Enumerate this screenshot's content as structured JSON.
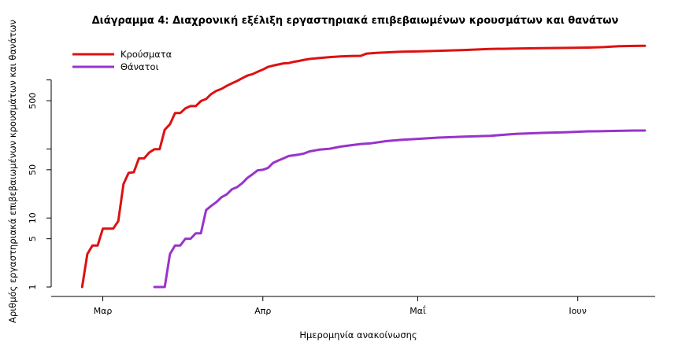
{
  "chart_data": {
    "type": "line",
    "title": "Διάγραμμα 4: Διαχρονική εξέλιξη εργαστηριακά επιβεβαιωμένων κρουσμάτων και θανάτων",
    "xlabel": "Ημερομηνία ανακοίνωσης",
    "ylabel": "Αριθμός εργαστηριακά επιβεβαιωμένων κρουσμάτων και θανάτων",
    "y_scale": "log",
    "ylim": [
      1,
      3400
    ],
    "xlim": [
      "2020-02-20",
      "2020-06-16"
    ],
    "x_ticks": [
      {
        "date": "2020-03-01",
        "label": "Μαρ"
      },
      {
        "date": "2020-04-01",
        "label": "Απρ"
      },
      {
        "date": "2020-05-01",
        "label": "Μαΐ"
      },
      {
        "date": "2020-06-01",
        "label": "Ιουν"
      }
    ],
    "y_ticks": [
      {
        "value": 1,
        "label": "1"
      },
      {
        "value": 5,
        "label": "5"
      },
      {
        "value": 10,
        "label": "10"
      },
      {
        "value": 50,
        "label": "50"
      },
      {
        "value": 500,
        "label": "500"
      }
    ],
    "y_ticks_unlabeled": [
      100,
      1000
    ],
    "grid": false,
    "legend_position": "top-left",
    "series": [
      {
        "name": "Κρούσματα",
        "color": "#dd1111",
        "points": [
          [
            "2020-02-26",
            1
          ],
          [
            "2020-02-27",
            3
          ],
          [
            "2020-02-28",
            4
          ],
          [
            "2020-02-29",
            4
          ],
          [
            "2020-03-01",
            7
          ],
          [
            "2020-03-02",
            7
          ],
          [
            "2020-03-03",
            7
          ],
          [
            "2020-03-04",
            9
          ],
          [
            "2020-03-05",
            31
          ],
          [
            "2020-03-06",
            45
          ],
          [
            "2020-03-07",
            46
          ],
          [
            "2020-03-08",
            73
          ],
          [
            "2020-03-09",
            73
          ],
          [
            "2020-03-10",
            89
          ],
          [
            "2020-03-11",
            99
          ],
          [
            "2020-03-12",
            99
          ],
          [
            "2020-03-13",
            190
          ],
          [
            "2020-03-14",
            228
          ],
          [
            "2020-03-15",
            331
          ],
          [
            "2020-03-16",
            331
          ],
          [
            "2020-03-17",
            387
          ],
          [
            "2020-03-18",
            418
          ],
          [
            "2020-03-19",
            418
          ],
          [
            "2020-03-20",
            495
          ],
          [
            "2020-03-21",
            530
          ],
          [
            "2020-03-22",
            624
          ],
          [
            "2020-03-23",
            695
          ],
          [
            "2020-03-24",
            743
          ],
          [
            "2020-03-25",
            821
          ],
          [
            "2020-03-26",
            892
          ],
          [
            "2020-03-27",
            966
          ],
          [
            "2020-03-28",
            1061
          ],
          [
            "2020-03-29",
            1156
          ],
          [
            "2020-03-30",
            1212
          ],
          [
            "2020-03-31",
            1314
          ],
          [
            "2020-04-01",
            1415
          ],
          [
            "2020-04-02",
            1544
          ],
          [
            "2020-04-03",
            1613
          ],
          [
            "2020-04-04",
            1673
          ],
          [
            "2020-04-05",
            1735
          ],
          [
            "2020-04-06",
            1755
          ],
          [
            "2020-04-07",
            1832
          ],
          [
            "2020-04-08",
            1884
          ],
          [
            "2020-04-09",
            1955
          ],
          [
            "2020-04-10",
            2011
          ],
          [
            "2020-04-12",
            2081
          ],
          [
            "2020-04-14",
            2145
          ],
          [
            "2020-04-16",
            2192
          ],
          [
            "2020-04-18",
            2224
          ],
          [
            "2020-04-20",
            2235
          ],
          [
            "2020-04-21",
            2401
          ],
          [
            "2020-04-23",
            2463
          ],
          [
            "2020-04-25",
            2506
          ],
          [
            "2020-04-28",
            2566
          ],
          [
            "2020-05-01",
            2591
          ],
          [
            "2020-05-05",
            2642
          ],
          [
            "2020-05-10",
            2716
          ],
          [
            "2020-05-15",
            2810
          ],
          [
            "2020-05-20",
            2850
          ],
          [
            "2020-05-25",
            2880
          ],
          [
            "2020-05-30",
            2910
          ],
          [
            "2020-06-03",
            2940
          ],
          [
            "2020-06-06",
            2990
          ],
          [
            "2020-06-09",
            3080
          ],
          [
            "2020-06-12",
            3110
          ],
          [
            "2020-06-14",
            3130
          ]
        ]
      },
      {
        "name": "Θάνατοι",
        "color": "#9933cc",
        "points": [
          [
            "2020-03-11",
            1
          ],
          [
            "2020-03-12",
            1
          ],
          [
            "2020-03-13",
            1
          ],
          [
            "2020-03-14",
            3
          ],
          [
            "2020-03-15",
            4
          ],
          [
            "2020-03-16",
            4
          ],
          [
            "2020-03-17",
            5
          ],
          [
            "2020-03-18",
            5
          ],
          [
            "2020-03-19",
            6
          ],
          [
            "2020-03-20",
            6
          ],
          [
            "2020-03-21",
            13
          ],
          [
            "2020-03-22",
            15
          ],
          [
            "2020-03-23",
            17
          ],
          [
            "2020-03-24",
            20
          ],
          [
            "2020-03-25",
            22
          ],
          [
            "2020-03-26",
            26
          ],
          [
            "2020-03-27",
            28
          ],
          [
            "2020-03-28",
            32
          ],
          [
            "2020-03-29",
            38
          ],
          [
            "2020-03-30",
            43
          ],
          [
            "2020-03-31",
            49
          ],
          [
            "2020-04-01",
            50
          ],
          [
            "2020-04-02",
            53
          ],
          [
            "2020-04-03",
            63
          ],
          [
            "2020-04-04",
            68
          ],
          [
            "2020-04-05",
            73
          ],
          [
            "2020-04-06",
            79
          ],
          [
            "2020-04-07",
            81
          ],
          [
            "2020-04-08",
            83
          ],
          [
            "2020-04-09",
            86
          ],
          [
            "2020-04-10",
            92
          ],
          [
            "2020-04-12",
            98
          ],
          [
            "2020-04-14",
            101
          ],
          [
            "2020-04-16",
            108
          ],
          [
            "2020-04-18",
            113
          ],
          [
            "2020-04-20",
            118
          ],
          [
            "2020-04-22",
            121
          ],
          [
            "2020-04-25",
            130
          ],
          [
            "2020-04-28",
            136
          ],
          [
            "2020-05-01",
            140
          ],
          [
            "2020-05-05",
            146
          ],
          [
            "2020-05-10",
            151
          ],
          [
            "2020-05-15",
            155
          ],
          [
            "2020-05-20",
            165
          ],
          [
            "2020-05-25",
            171
          ],
          [
            "2020-05-30",
            175
          ],
          [
            "2020-06-03",
            180
          ],
          [
            "2020-06-06",
            181
          ],
          [
            "2020-06-09",
            183
          ],
          [
            "2020-06-12",
            185
          ],
          [
            "2020-06-14",
            185
          ]
        ]
      }
    ]
  }
}
